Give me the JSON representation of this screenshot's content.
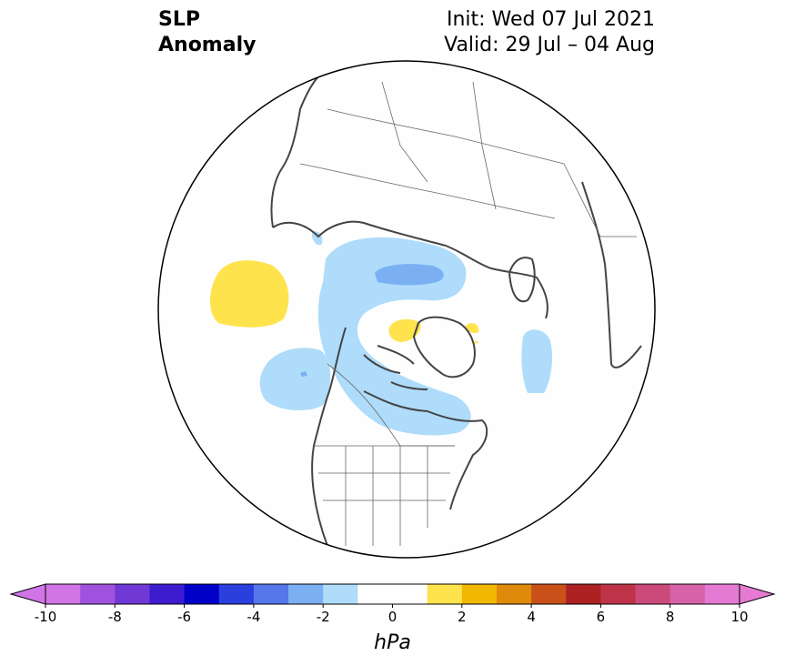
{
  "title": {
    "line1": "SLP",
    "line2": "Anomaly"
  },
  "info": {
    "init": "Init: Wed 07 Jul 2021",
    "valid": "Valid: 29 Jul – 04 Aug"
  },
  "colorbar": {
    "unit": "hPa",
    "ticks": [
      "-10",
      "-8",
      "-6",
      "-4",
      "-2",
      "0",
      "2",
      "4",
      "6",
      "8",
      "10"
    ],
    "min": -10,
    "max": 10,
    "step": 1,
    "colors": [
      "#d175e6",
      "#a052de",
      "#7039d6",
      "#3d1ccf",
      "#0000c8",
      "#2a3fdd",
      "#5477ea",
      "#7ab0f2",
      "#aedcfa",
      "#ffffff",
      "#ffffff",
      "#ffe34d",
      "#f1b800",
      "#e08a0c",
      "#c95119",
      "#ad2123",
      "#bf3348",
      "#cb4a79",
      "#d862a8",
      "#e47ad2"
    ]
  },
  "map": {
    "projection": "north-polar-stereographic",
    "features": [
      "coastlines",
      "country-borders",
      "state-borders"
    ],
    "anomalies": [
      {
        "region": "north-pacific",
        "sign": "positive",
        "value": 1
      },
      {
        "region": "arctic-ocean-siberia",
        "sign": "negative",
        "value": -2
      },
      {
        "region": "kara-sea",
        "sign": "negative",
        "value": -3
      },
      {
        "region": "gulf-of-alaska",
        "sign": "negative",
        "value": -1
      },
      {
        "region": "canada-hudson",
        "sign": "negative",
        "value": -1
      },
      {
        "region": "north-greenland",
        "sign": "positive",
        "value": 1
      },
      {
        "region": "north-atlantic",
        "sign": "negative",
        "value": -1
      }
    ]
  }
}
